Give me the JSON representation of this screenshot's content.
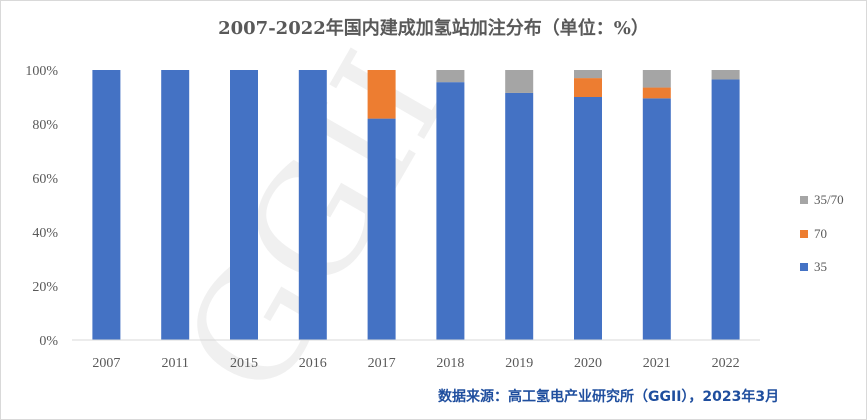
{
  "title": "2007-2022年国内建成加氢站加注分布（单位：%）",
  "source": "数据来源：高工氢电产业研究所（GGII），2023年3月",
  "watermark": "GGII",
  "chart_data": {
    "type": "bar",
    "stacked": true,
    "categories": [
      "2007",
      "2011",
      "2015",
      "2016",
      "2017",
      "2018",
      "2019",
      "2020",
      "2021",
      "2022"
    ],
    "series": [
      {
        "name": "35",
        "color": "#4472c4",
        "values": [
          100,
          100,
          100,
          100,
          82,
          95.5,
          91.5,
          90,
          89.5,
          96.5
        ]
      },
      {
        "name": "70",
        "color": "#ed7d31",
        "values": [
          0,
          0,
          0,
          0,
          18,
          0,
          0,
          7,
          4,
          0
        ]
      },
      {
        "name": "35/70",
        "color": "#a5a5a5",
        "values": [
          0,
          0,
          0,
          0,
          0,
          4.5,
          8.5,
          3,
          6.5,
          3.5
        ]
      }
    ],
    "ylim": [
      0,
      100
    ],
    "yticks": [
      "0%",
      "20%",
      "40%",
      "60%",
      "80%",
      "100%"
    ],
    "legend_position": "right",
    "grid": false
  }
}
